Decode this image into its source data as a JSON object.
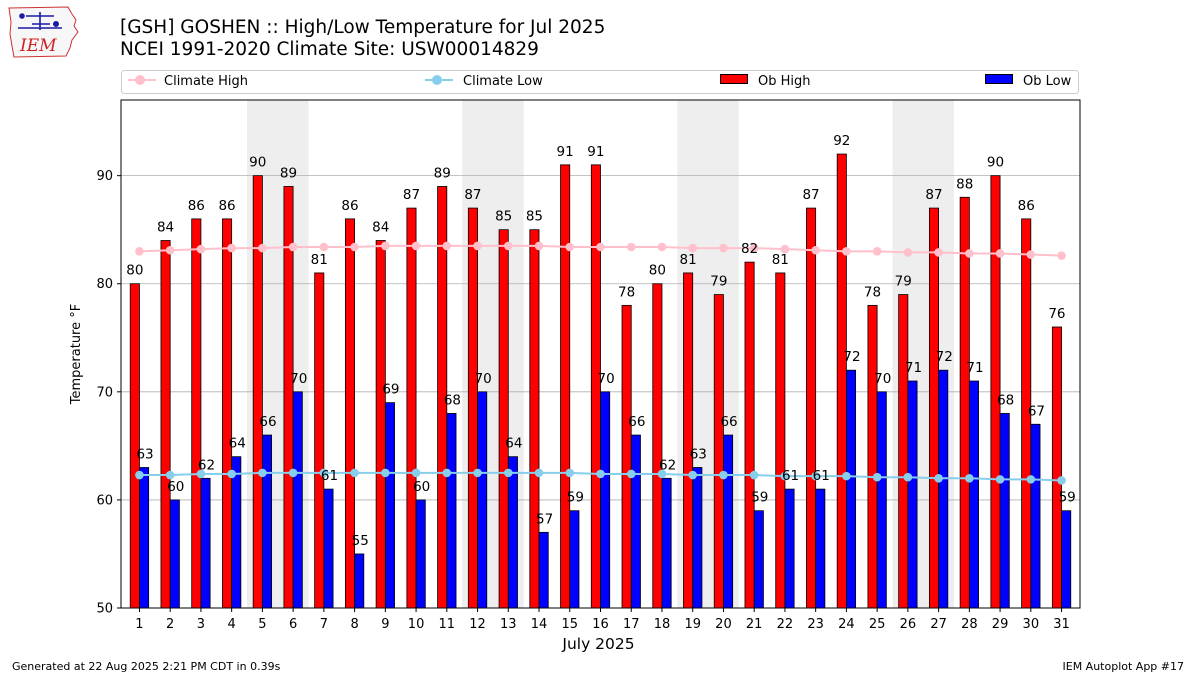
{
  "header": {
    "title_line1": "[GSH] GOSHEN :: High/Low Temperature for Jul 2025",
    "title_line2": "NCEI 1991-2020 Climate Site: USW00014829"
  },
  "logo": {
    "text": "IEM"
  },
  "legend": {
    "climate_high": "Climate High",
    "climate_low": "Climate Low",
    "ob_high": "Ob High",
    "ob_low": "Ob Low"
  },
  "footer": {
    "generated": "Generated at 22 Aug 2025 2:21 PM CDT in 0.39s",
    "app": "IEM Autoplot App #17"
  },
  "colors": {
    "ob_high": "#ff0000",
    "ob_low": "#0000ff",
    "climate_high": "#ffc0cb",
    "climate_low": "#87ceeb",
    "weekend_band": "#eeeeee",
    "grid": "#b0b0b0"
  },
  "chart_data": {
    "type": "bar",
    "title": "[GSH] GOSHEN :: High/Low Temperature for Jul 2025",
    "xlabel": "July 2025",
    "ylabel": "Temperature °F",
    "ylim": [
      50,
      97
    ],
    "yticks": [
      50,
      60,
      70,
      80,
      90
    ],
    "grid": true,
    "legend_position": "top",
    "categories": [
      "1",
      "2",
      "3",
      "4",
      "5",
      "6",
      "7",
      "8",
      "9",
      "10",
      "11",
      "12",
      "13",
      "14",
      "15",
      "16",
      "17",
      "18",
      "19",
      "20",
      "21",
      "22",
      "23",
      "24",
      "25",
      "26",
      "27",
      "28",
      "29",
      "30",
      "31"
    ],
    "weekend_days": [
      5,
      6,
      12,
      13,
      19,
      20,
      26,
      27
    ],
    "series": [
      {
        "name": "Ob High",
        "kind": "bar",
        "values": [
          80,
          84,
          86,
          86,
          90,
          89,
          81,
          86,
          84,
          87,
          89,
          87,
          85,
          85,
          91,
          91,
          78,
          80,
          81,
          79,
          82,
          81,
          87,
          92,
          78,
          79,
          87,
          88,
          90,
          86,
          76
        ]
      },
      {
        "name": "Ob Low",
        "kind": "bar",
        "values": [
          63,
          60,
          62,
          64,
          66,
          70,
          61,
          55,
          69,
          60,
          68,
          70,
          64,
          57,
          59,
          70,
          66,
          62,
          63,
          66,
          59,
          61,
          61,
          72,
          70,
          71,
          72,
          71,
          68,
          67,
          59
        ]
      },
      {
        "name": "Climate High",
        "kind": "line",
        "values": [
          83.0,
          83.1,
          83.2,
          83.3,
          83.3,
          83.4,
          83.4,
          83.4,
          83.5,
          83.5,
          83.5,
          83.5,
          83.5,
          83.5,
          83.4,
          83.4,
          83.4,
          83.4,
          83.3,
          83.3,
          83.3,
          83.2,
          83.1,
          83.0,
          83.0,
          82.9,
          82.9,
          82.8,
          82.8,
          82.7,
          82.6
        ]
      },
      {
        "name": "Climate Low",
        "kind": "line",
        "values": [
          62.3,
          62.3,
          62.4,
          62.4,
          62.5,
          62.5,
          62.5,
          62.5,
          62.5,
          62.5,
          62.5,
          62.5,
          62.5,
          62.5,
          62.5,
          62.4,
          62.4,
          62.4,
          62.3,
          62.3,
          62.3,
          62.2,
          62.2,
          62.2,
          62.1,
          62.1,
          62.0,
          62.0,
          61.9,
          61.9,
          61.8
        ]
      }
    ]
  }
}
